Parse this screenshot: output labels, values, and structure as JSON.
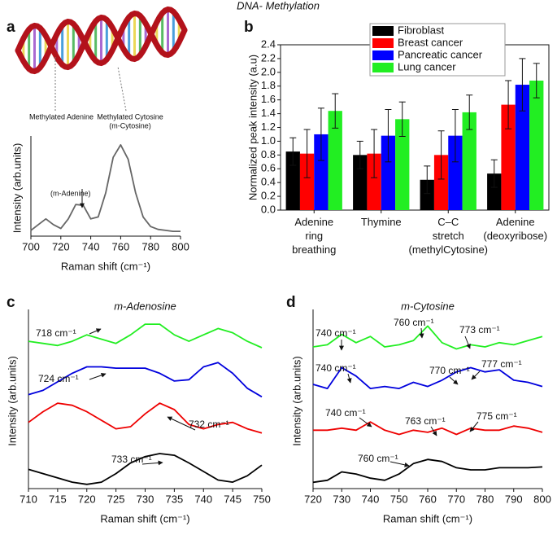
{
  "title": "DNA- Methylation",
  "illustration": {
    "labels": [
      "Methylated Adenine",
      "Methylated Cytosine",
      "(m-Cytosine)"
    ]
  },
  "chart_data": [
    {
      "type": "line",
      "panel": "a",
      "xlabel": "Raman shift (cm⁻¹)",
      "ylabel": "Intensity (arb.units)",
      "x": [
        700,
        705,
        710,
        715,
        720,
        725,
        730,
        735,
        740,
        745,
        750,
        755,
        760,
        765,
        770,
        775,
        780,
        785,
        790,
        795,
        800
      ],
      "series": [
        {
          "color": "#666666",
          "values": [
            0.06,
            0.12,
            0.18,
            0.12,
            0.08,
            0.18,
            0.33,
            0.32,
            0.18,
            0.2,
            0.45,
            0.82,
            0.95,
            0.8,
            0.45,
            0.2,
            0.1,
            0.07,
            0.06,
            0.05,
            0.05
          ]
        }
      ],
      "xlim": [
        700,
        800
      ],
      "ylim": [
        0,
        1
      ],
      "xticks": [
        700,
        720,
        740,
        760,
        780,
        800
      ],
      "annotations": [
        "(m-Adenine)"
      ]
    },
    {
      "type": "bar",
      "panel": "b",
      "ylabel": "Normalized peak intensity (a.u)",
      "categories": [
        "Adenine ring breathing",
        "Thymine",
        "C–C stretch (methylCytosine)",
        "Adenine (deoxyribose)"
      ],
      "series": [
        {
          "name": "Fibroblast",
          "color": "#000000",
          "values": [
            0.85,
            0.8,
            0.44,
            0.53
          ],
          "errors": [
            0.2,
            0.2,
            0.2,
            0.2
          ]
        },
        {
          "name": "Breast cancer",
          "color": "#ff0000",
          "values": [
            0.82,
            0.82,
            0.8,
            1.53
          ],
          "errors": [
            0.35,
            0.35,
            0.35,
            0.35
          ]
        },
        {
          "name": "Pancreatic cancer",
          "color": "#0000ff",
          "values": [
            1.1,
            1.08,
            1.08,
            1.82
          ],
          "errors": [
            0.38,
            0.38,
            0.38,
            0.38
          ]
        },
        {
          "name": "Lung cancer",
          "color": "#22ee22",
          "values": [
            1.44,
            1.32,
            1.42,
            1.88
          ],
          "errors": [
            0.25,
            0.25,
            0.25,
            0.25
          ]
        }
      ],
      "ylim": [
        0,
        2.4
      ],
      "yticks": [
        {
          "value": 0,
          "label": "0.0"
        },
        0.2,
        0.4,
        0.6,
        0.8,
        {
          "value": 1,
          "label": "1.0"
        },
        1.2,
        1.4,
        1.6,
        1.8,
        {
          "value": 2,
          "label": "2.0"
        },
        2.2,
        2.4
      ],
      "legend": "top-left"
    },
    {
      "type": "line",
      "panel": "c",
      "title": "m-Adenosine",
      "xlabel": "Raman shift (cm⁻¹)",
      "ylabel": "Intensity (arb.units)",
      "x": [
        710,
        712.5,
        715,
        717.5,
        720,
        722.5,
        725,
        727.5,
        730,
        732.5,
        735,
        737.5,
        740,
        742.5,
        745,
        747.5,
        750
      ],
      "series": [
        {
          "color": "#22ee22",
          "values": [
            3.35,
            3.3,
            3.25,
            3.35,
            3.5,
            3.4,
            3.3,
            3.5,
            3.75,
            3.75,
            3.5,
            3.35,
            3.5,
            3.65,
            3.55,
            3.35,
            3.2
          ]
        },
        {
          "color": "#0000dd",
          "values": [
            2.1,
            2.2,
            2.4,
            2.6,
            2.75,
            2.75,
            2.72,
            2.72,
            2.72,
            2.6,
            2.42,
            2.45,
            2.75,
            2.85,
            2.6,
            2.25,
            2.05
          ]
        },
        {
          "color": "#ee0000",
          "values": [
            1.45,
            1.7,
            1.9,
            1.85,
            1.7,
            1.5,
            1.3,
            1.35,
            1.65,
            1.9,
            1.75,
            1.4,
            1.3,
            1.4,
            1.45,
            1.3,
            1.2
          ]
        },
        {
          "color": "#000000",
          "values": [
            0.35,
            0.25,
            0.15,
            0.05,
            0.0,
            0.05,
            0.25,
            0.5,
            0.65,
            0.72,
            0.68,
            0.5,
            0.3,
            0.1,
            0.05,
            0.2,
            0.45
          ]
        }
      ],
      "xlim": [
        710,
        750
      ],
      "ylim": [
        -0.1,
        4
      ],
      "xticks": [
        710,
        715,
        720,
        725,
        730,
        735,
        740,
        745,
        750
      ],
      "annotations": [
        "718 cm⁻¹",
        "724 cm⁻¹",
        "732 cm⁻¹",
        "733 cm⁻¹"
      ]
    },
    {
      "type": "line",
      "panel": "d",
      "title": "m-Cytosine",
      "xlabel": "Raman shift (cm⁻¹)",
      "ylabel": "Intensity (arb.units)",
      "x": [
        720,
        725,
        730,
        735,
        740,
        745,
        750,
        755,
        760,
        765,
        770,
        775,
        780,
        785,
        790,
        795,
        800
      ],
      "series": [
        {
          "color": "#22ee22",
          "values": [
            3.3,
            3.35,
            3.6,
            3.4,
            3.55,
            3.3,
            3.35,
            3.45,
            3.8,
            3.4,
            3.25,
            3.35,
            3.3,
            3.4,
            3.35,
            3.45,
            3.55
          ]
        },
        {
          "color": "#0000dd",
          "values": [
            2.4,
            2.3,
            2.8,
            2.6,
            2.3,
            2.35,
            2.3,
            2.45,
            2.35,
            2.5,
            2.7,
            2.8,
            2.7,
            2.75,
            2.5,
            2.45,
            2.35
          ]
        },
        {
          "color": "#ee0000",
          "values": [
            1.3,
            1.3,
            1.35,
            1.3,
            1.5,
            1.3,
            1.2,
            1.3,
            1.25,
            1.35,
            1.2,
            1.35,
            1.3,
            1.3,
            1.4,
            1.35,
            1.25
          ]
        },
        {
          "color": "#000000",
          "values": [
            0.05,
            0.1,
            0.3,
            0.25,
            0.15,
            0.1,
            0.25,
            0.5,
            0.6,
            0.55,
            0.4,
            0.35,
            0.35,
            0.4,
            0.4,
            0.4,
            0.42
          ]
        }
      ],
      "xlim": [
        720,
        800
      ],
      "ylim": [
        -0.1,
        4.1
      ],
      "xticks": [
        720,
        730,
        740,
        750,
        760,
        770,
        780,
        790,
        800
      ],
      "annotations": [
        "740 cm⁻¹",
        "760 cm⁻¹",
        "773 cm⁻¹",
        "740 cm⁻¹",
        "770 cm⁻¹",
        "777 cm⁻¹",
        "740 cm⁻¹",
        "763 cm⁻¹",
        "775 cm⁻¹",
        "760 cm⁻¹"
      ]
    }
  ]
}
